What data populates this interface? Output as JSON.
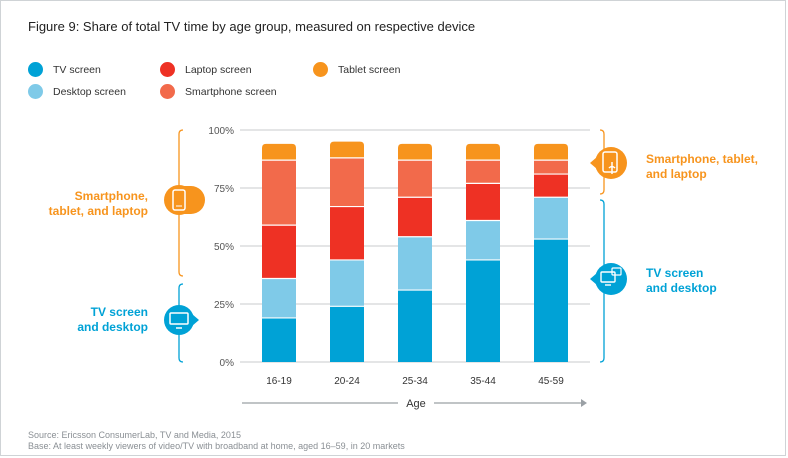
{
  "figure_title": "Figure 9: Share of total TV time by age group, measured on respective device",
  "source_line1": "Source: Ericsson ConsumerLab, TV and Media, 2015",
  "source_line2": "Base: At least weekly viewers of video/TV with broadband at home, aged 16–59, in 20 markets",
  "annotations": {
    "left_mobile": [
      "Smartphone,",
      "tablet, and laptop"
    ],
    "left_fixed": [
      "TV screen",
      "and desktop"
    ],
    "right_mobile": [
      "Smartphone, tablet,",
      "and laptop"
    ],
    "right_fixed": [
      "TV screen",
      "and desktop"
    ]
  },
  "colors": {
    "tv": "#00a2d6",
    "desktop": "#7fcae8",
    "laptop": "#ee3124",
    "smartphone": "#f26a4b",
    "tablet": "#f7941d",
    "fixed_group": "#00a2d6",
    "mobile_group": "#f7941d",
    "gridline": "#c8cbce",
    "axis_text": "#555555"
  },
  "icons": {
    "left_mobile": "smartphone-icon",
    "left_fixed": "monitor-icon",
    "right_mobile": "touch-tablet-icon",
    "right_fixed": "tv-desktop-icon"
  },
  "chart_data": {
    "type": "bar",
    "stacked": true,
    "title": "Figure 9: Share of total TV time by age group, measured on respective device",
    "xlabel": "Age",
    "ylabel": "",
    "ylim": [
      0,
      100
    ],
    "y_ticks": [
      "0%",
      "25%",
      "50%",
      "75%",
      "100%"
    ],
    "y_tick_values": [
      0,
      25,
      50,
      75,
      100
    ],
    "grid": true,
    "legend_position": "top-left",
    "categories": [
      "16-19",
      "20-24",
      "25-34",
      "35-44",
      "45-59"
    ],
    "series": [
      {
        "name": "TV screen",
        "key": "tv",
        "values": [
          19,
          24,
          31,
          44,
          53
        ]
      },
      {
        "name": "Desktop screen",
        "key": "desktop",
        "values": [
          17,
          20,
          23,
          17,
          18
        ]
      },
      {
        "name": "Laptop screen",
        "key": "laptop",
        "values": [
          23,
          23,
          17,
          16,
          10
        ]
      },
      {
        "name": "Smartphone screen",
        "key": "smartphone",
        "values": [
          28,
          21,
          16,
          10,
          6
        ]
      },
      {
        "name": "Tablet screen",
        "key": "tablet",
        "values": [
          7,
          7,
          7,
          7,
          7
        ]
      }
    ],
    "legend_order": [
      "tv",
      "laptop",
      "tablet",
      "desktop",
      "smartphone"
    ]
  }
}
